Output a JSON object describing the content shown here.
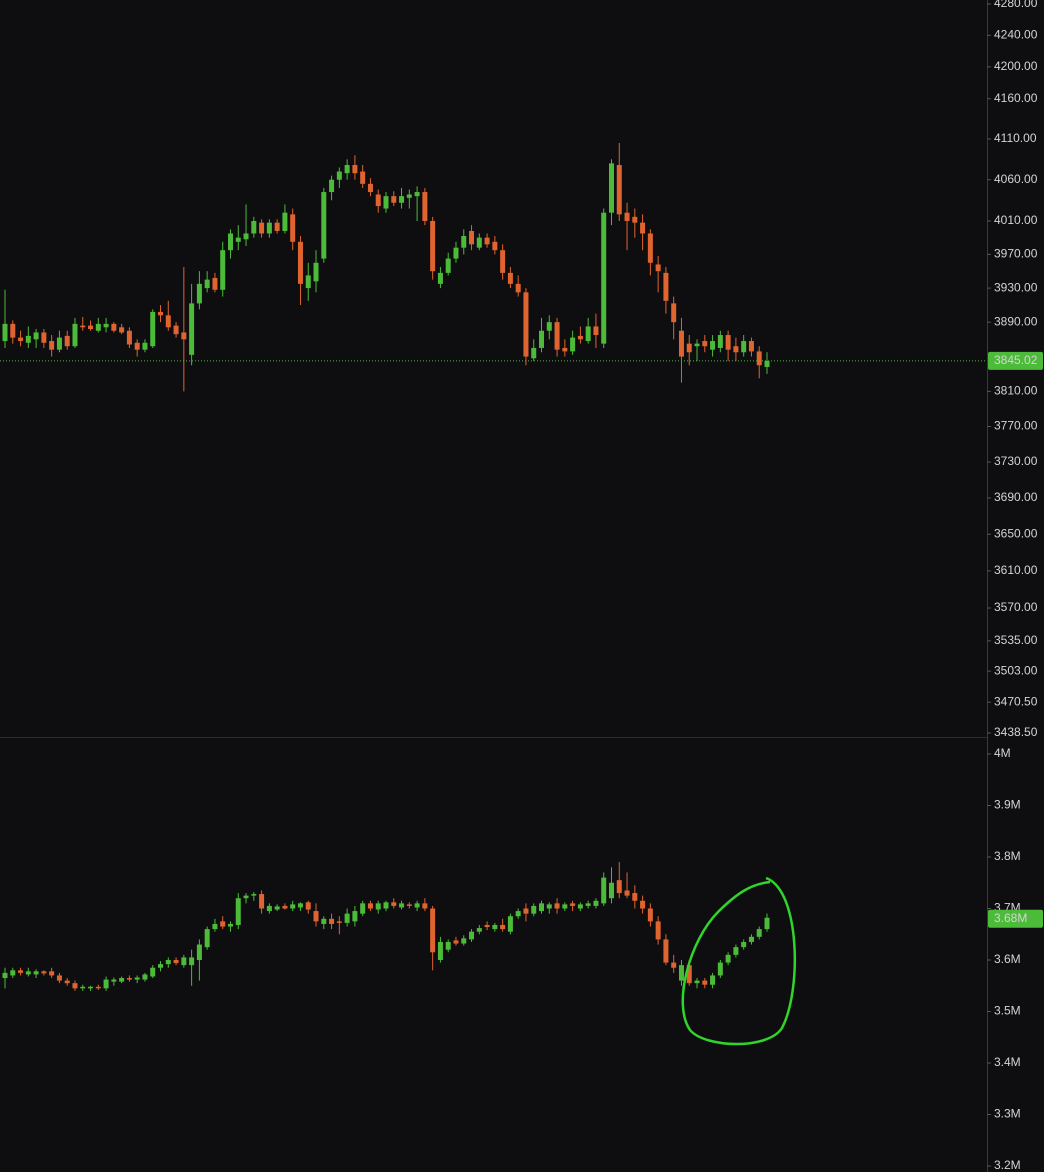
{
  "chart_data": [
    {
      "type": "candlestick",
      "log": true,
      "grid": false,
      "up_color": "#4cbb3a",
      "down_color": "#e0642f",
      "ylim": [
        3438.5,
        4280
      ],
      "yticks": [
        {
          "value": 4280,
          "label": "4280.00"
        },
        {
          "value": 4240,
          "label": "4240.00"
        },
        {
          "value": 4200,
          "label": "4200.00"
        },
        {
          "value": 4160,
          "label": "4160.00"
        },
        {
          "value": 4110,
          "label": "4110.00"
        },
        {
          "value": 4060,
          "label": "4060.00"
        },
        {
          "value": 4010,
          "label": "4010.00"
        },
        {
          "value": 3970,
          "label": "3970.00"
        },
        {
          "value": 3930,
          "label": "3930.00"
        },
        {
          "value": 3890,
          "label": "3890.00"
        },
        {
          "value": 3810,
          "label": "3810.00"
        },
        {
          "value": 3770,
          "label": "3770.00"
        },
        {
          "value": 3730,
          "label": "3730.00"
        },
        {
          "value": 3690,
          "label": "3690.00"
        },
        {
          "value": 3650,
          "label": "3650.00"
        },
        {
          "value": 3610,
          "label": "3610.00"
        },
        {
          "value": 3570,
          "label": "3570.00"
        },
        {
          "value": 3535,
          "label": "3535.00"
        },
        {
          "value": 3503,
          "label": "3503.00"
        },
        {
          "value": 3470.5,
          "label": "3470.50"
        },
        {
          "value": 3438.5,
          "label": "3438.50"
        }
      ],
      "last_value": 3845.02,
      "open": [
        3868,
        3888,
        3872,
        3866,
        3870,
        3878,
        3868,
        3858,
        3874,
        3862,
        3886,
        3886,
        3880,
        3884,
        3888,
        3884,
        3880,
        3866,
        3858,
        3862,
        3902,
        3898,
        3886,
        3878,
        3852,
        3912,
        3930,
        3942,
        3928,
        3975,
        3985,
        3988,
        3995,
        4008,
        3995,
        4008,
        3998,
        4018,
        3985,
        3930,
        3938,
        3965,
        4045,
        4060,
        4068,
        4078,
        4070,
        4055,
        4042,
        4025,
        4040,
        4032,
        4038,
        4040,
        4045,
        4010,
        3935,
        3948,
        3965,
        3978,
        3998,
        3978,
        3990,
        3985,
        3975,
        3948,
        3935,
        3925,
        3848,
        3860,
        3880,
        3890,
        3860,
        3856,
        3874,
        3868,
        3885,
        3865,
        4020,
        4078,
        4020,
        4015,
        4008,
        3995,
        3958,
        3948,
        3912,
        3880,
        3865,
        3862,
        3868,
        3858,
        3860,
        3875,
        3862,
        3855,
        3868,
        3856,
        3838
      ],
      "high": [
        3928,
        3892,
        3880,
        3885,
        3882,
        3882,
        3875,
        3880,
        3880,
        3895,
        3896,
        3892,
        3895,
        3895,
        3890,
        3888,
        3884,
        3870,
        3870,
        3905,
        3910,
        3915,
        3890,
        3955,
        3935,
        3950,
        3950,
        3948,
        3985,
        4000,
        4005,
        4030,
        4015,
        4012,
        4012,
        4012,
        4030,
        4025,
        3992,
        3960,
        3975,
        4050,
        4065,
        4075,
        4085,
        4090,
        4078,
        4062,
        4048,
        4045,
        4046,
        4050,
        4048,
        4052,
        4050,
        4015,
        3955,
        3972,
        3985,
        4000,
        4005,
        3995,
        3995,
        3992,
        3982,
        3955,
        3945,
        3930,
        3870,
        3895,
        3898,
        3895,
        3870,
        3880,
        3885,
        3895,
        3900,
        4025,
        4085,
        4105,
        4032,
        4025,
        4018,
        4000,
        3968,
        3955,
        3920,
        3895,
        3875,
        3870,
        3875,
        3875,
        3880,
        3880,
        3872,
        3875,
        3872,
        3862,
        3855
      ],
      "low": [
        3860,
        3865,
        3862,
        3860,
        3860,
        3860,
        3850,
        3855,
        3858,
        3860,
        3880,
        3880,
        3878,
        3878,
        3878,
        3876,
        3860,
        3850,
        3855,
        3860,
        3890,
        3880,
        3872,
        3810,
        3840,
        3905,
        3925,
        3925,
        3920,
        3965,
        3975,
        3980,
        3990,
        3990,
        3990,
        3995,
        3995,
        3975,
        3910,
        3915,
        3925,
        3960,
        4035,
        4050,
        4060,
        4060,
        4050,
        4040,
        4020,
        4020,
        4028,
        4025,
        4025,
        4010,
        4005,
        3940,
        3930,
        3945,
        3960,
        3970,
        3975,
        3975,
        3978,
        3970,
        3940,
        3930,
        3920,
        3840,
        3845,
        3855,
        3870,
        3850,
        3850,
        3852,
        3865,
        3865,
        3860,
        3860,
        4005,
        4010,
        3975,
        3990,
        3975,
        3945,
        3925,
        3900,
        3870,
        3820,
        3840,
        3845,
        3855,
        3850,
        3855,
        3845,
        3845,
        3850,
        3850,
        3825,
        3830
      ],
      "close": [
        3888,
        3872,
        3868,
        3874,
        3878,
        3866,
        3858,
        3872,
        3862,
        3888,
        3884,
        3882,
        3888,
        3888,
        3880,
        3878,
        3864,
        3858,
        3866,
        3902,
        3898,
        3884,
        3876,
        3870,
        3912,
        3935,
        3940,
        3928,
        3975,
        3995,
        3990,
        3995,
        4010,
        3995,
        4008,
        3998,
        4020,
        3985,
        3935,
        3945,
        3960,
        4045,
        4060,
        4070,
        4078,
        4068,
        4055,
        4045,
        4028,
        4040,
        4032,
        4040,
        4042,
        4045,
        4010,
        3950,
        3948,
        3965,
        3978,
        3992,
        3982,
        3990,
        3982,
        3975,
        3948,
        3935,
        3925,
        3850,
        3860,
        3880,
        3890,
        3858,
        3856,
        3872,
        3870,
        3885,
        3875,
        4020,
        4080,
        4018,
        4010,
        4008,
        3995,
        3960,
        3950,
        3915,
        3890,
        3850,
        3855,
        3865,
        3862,
        3868,
        3875,
        3858,
        3855,
        3868,
        3856,
        3840,
        3845.02
      ]
    },
    {
      "type": "candlestick",
      "log": false,
      "grid": false,
      "up_color": "#4cbb3a",
      "down_color": "#e0642f",
      "ylim": [
        3200000,
        4000000
      ],
      "yticks": [
        {
          "value": 4000000,
          "label": "4M"
        },
        {
          "value": 3900000,
          "label": "3.9M"
        },
        {
          "value": 3800000,
          "label": "3.8M"
        },
        {
          "value": 3700000,
          "label": "3.7M"
        },
        {
          "value": 3600000,
          "label": "3.6M"
        },
        {
          "value": 3500000,
          "label": "3.5M"
        },
        {
          "value": 3400000,
          "label": "3.4M"
        },
        {
          "value": 3300000,
          "label": "3.3M"
        },
        {
          "value": 3200000,
          "label": "3.2M"
        }
      ],
      "last_value": {
        "value": 3680000,
        "label": "3.68M"
      },
      "open": [
        3565000,
        3570000,
        3580000,
        3572000,
        3572000,
        3578000,
        3578000,
        3570000,
        3560000,
        3555000,
        3545000,
        3545000,
        3548000,
        3545000,
        3558000,
        3558000,
        3565000,
        3562000,
        3562000,
        3568000,
        3585000,
        3592000,
        3600000,
        3590000,
        3590000,
        3600000,
        3625000,
        3660000,
        3675000,
        3665000,
        3668000,
        3720000,
        3725000,
        3728000,
        3695000,
        3698000,
        3705000,
        3700000,
        3702000,
        3712000,
        3695000,
        3670000,
        3680000,
        3675000,
        3672000,
        3675000,
        3690000,
        3710000,
        3698000,
        3700000,
        3712000,
        3702000,
        3708000,
        3702000,
        3710000,
        3700000,
        3600000,
        3620000,
        3638000,
        3632000,
        3640000,
        3655000,
        3668000,
        3660000,
        3668000,
        3655000,
        3685000,
        3700000,
        3690000,
        3695000,
        3700000,
        3710000,
        3700000,
        3710000,
        3700000,
        3705000,
        3705000,
        3710000,
        3720000,
        3755000,
        3735000,
        3730000,
        3715000,
        3700000,
        3675000,
        3640000,
        3595000,
        3560000,
        3590000,
        3555000,
        3560000,
        3552000,
        3570000,
        3595000,
        3610000,
        3625000,
        3635000,
        3645000,
        3660000
      ],
      "high": [
        3585000,
        3585000,
        3585000,
        3585000,
        3582000,
        3580000,
        3585000,
        3575000,
        3565000,
        3560000,
        3552000,
        3550000,
        3552000,
        3568000,
        3566000,
        3568000,
        3570000,
        3570000,
        3575000,
        3590000,
        3598000,
        3605000,
        3605000,
        3610000,
        3620000,
        3640000,
        3665000,
        3680000,
        3685000,
        3675000,
        3730000,
        3730000,
        3732000,
        3735000,
        3710000,
        3708000,
        3710000,
        3715000,
        3712000,
        3715000,
        3710000,
        3685000,
        3690000,
        3685000,
        3700000,
        3705000,
        3715000,
        3715000,
        3715000,
        3715000,
        3720000,
        3715000,
        3712000,
        3715000,
        3720000,
        3705000,
        3645000,
        3640000,
        3645000,
        3648000,
        3660000,
        3668000,
        3675000,
        3672000,
        3680000,
        3690000,
        3700000,
        3710000,
        3710000,
        3715000,
        3712000,
        3720000,
        3712000,
        3715000,
        3712000,
        3715000,
        3720000,
        3770000,
        3780000,
        3790000,
        3770000,
        3745000,
        3725000,
        3710000,
        3685000,
        3650000,
        3610000,
        3600000,
        3600000,
        3565000,
        3565000,
        3575000,
        3600000,
        3615000,
        3630000,
        3640000,
        3650000,
        3665000,
        3690000
      ],
      "low": [
        3545000,
        3565000,
        3570000,
        3568000,
        3565000,
        3570000,
        3565000,
        3555000,
        3550000,
        3540000,
        3540000,
        3540000,
        3542000,
        3540000,
        3550000,
        3555000,
        3558000,
        3555000,
        3558000,
        3565000,
        3578000,
        3585000,
        3590000,
        3585000,
        3550000,
        3560000,
        3620000,
        3655000,
        3660000,
        3655000,
        3660000,
        3710000,
        3715000,
        3690000,
        3690000,
        3695000,
        3698000,
        3695000,
        3695000,
        3690000,
        3665000,
        3660000,
        3660000,
        3650000,
        3665000,
        3665000,
        3685000,
        3695000,
        3690000,
        3695000,
        3700000,
        3698000,
        3700000,
        3695000,
        3695000,
        3580000,
        3595000,
        3615000,
        3628000,
        3628000,
        3635000,
        3650000,
        3658000,
        3655000,
        3655000,
        3650000,
        3680000,
        3675000,
        3685000,
        3690000,
        3690000,
        3690000,
        3695000,
        3695000,
        3695000,
        3700000,
        3700000,
        3705000,
        3710000,
        3720000,
        3720000,
        3700000,
        3690000,
        3665000,
        3630000,
        3590000,
        3575000,
        3550000,
        3550000,
        3545000,
        3545000,
        3545000,
        3565000,
        3590000,
        3605000,
        3620000,
        3630000,
        3640000,
        3655000
      ],
      "close": [
        3575000,
        3580000,
        3575000,
        3578000,
        3578000,
        3574000,
        3570000,
        3560000,
        3555000,
        3545000,
        3548000,
        3548000,
        3545000,
        3562000,
        3562000,
        3565000,
        3562000,
        3566000,
        3572000,
        3585000,
        3592000,
        3600000,
        3594000,
        3605000,
        3605000,
        3630000,
        3660000,
        3670000,
        3665000,
        3670000,
        3720000,
        3725000,
        3728000,
        3700000,
        3705000,
        3704000,
        3700000,
        3708000,
        3710000,
        3698000,
        3675000,
        3680000,
        3670000,
        3672000,
        3690000,
        3695000,
        3710000,
        3700000,
        3710000,
        3712000,
        3705000,
        3710000,
        3705000,
        3710000,
        3700000,
        3615000,
        3635000,
        3635000,
        3632000,
        3642000,
        3655000,
        3662000,
        3664000,
        3668000,
        3660000,
        3685000,
        3695000,
        3690000,
        3705000,
        3710000,
        3708000,
        3700000,
        3708000,
        3705000,
        3708000,
        3710000,
        3715000,
        3760000,
        3750000,
        3730000,
        3725000,
        3715000,
        3700000,
        3675000,
        3640000,
        3595000,
        3585000,
        3590000,
        3555000,
        3560000,
        3552000,
        3570000,
        3595000,
        3610000,
        3625000,
        3635000,
        3645000,
        3660000,
        3682000
      ]
    }
  ]
}
